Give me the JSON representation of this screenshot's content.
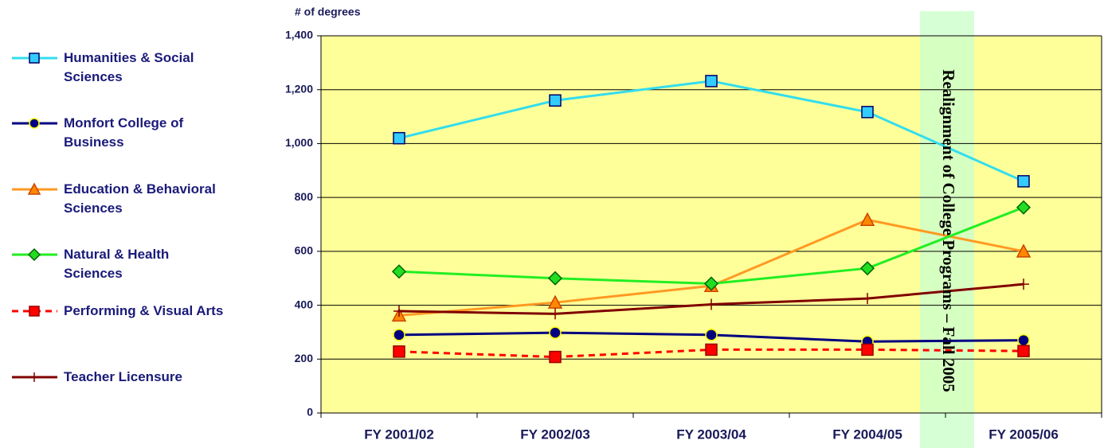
{
  "chart_data": {
    "type": "line",
    "y_label": "# of degrees",
    "annotation": "Realignment of College Programs – Fall 2005",
    "categories": [
      "FY 2001/02",
      "FY 2002/03",
      "FY 2003/04",
      "FY 2004/05",
      "FY 2005/06"
    ],
    "ylim": [
      0,
      1400
    ],
    "yticks": [
      0,
      200,
      400,
      600,
      800,
      {
        "value": 1000,
        "label": "1,000"
      },
      {
        "value": 1200,
        "label": "1,200"
      },
      {
        "value": 1400,
        "label": "1,400"
      }
    ],
    "grid": true,
    "legend": "left",
    "series": [
      {
        "name": "Humanities & Social Sciences",
        "color": "#33ddee",
        "marker": "square",
        "marker_fill": "#33ccff",
        "marker_stroke": "#000066",
        "values": [
          1020,
          1160,
          1232,
          1117,
          860
        ]
      },
      {
        "name": "Monfort College of Business",
        "color": "#000080",
        "marker": "circle",
        "marker_fill": "#000080",
        "marker_stroke": "#ffff00",
        "values": [
          290,
          298,
          290,
          265,
          270
        ]
      },
      {
        "name": "Education & Behavioral Sciences",
        "color": "#ff9922",
        "marker": "triangle",
        "marker_fill": "#ff8800",
        "marker_stroke": "#cc4400",
        "values": [
          362,
          410,
          472,
          717,
          600
        ]
      },
      {
        "name": "Natural & Health Sciences",
        "color": "#22ee22",
        "marker": "diamond",
        "marker_fill": "#22dd22",
        "marker_stroke": "#006600",
        "values": [
          525,
          500,
          480,
          537,
          763
        ]
      },
      {
        "name": "Performing & Visual Arts",
        "color": "#ff0000",
        "dashed": true,
        "marker": "square",
        "marker_fill": "#ff0000",
        "marker_stroke": "#990000",
        "values": [
          228,
          208,
          235,
          235,
          230
        ]
      },
      {
        "name": "Teacher Licensure",
        "color": "#800000",
        "marker": "plus",
        "marker_fill": "#800000",
        "marker_stroke": "#800000",
        "values": [
          378,
          368,
          403,
          425,
          478
        ]
      }
    ]
  }
}
